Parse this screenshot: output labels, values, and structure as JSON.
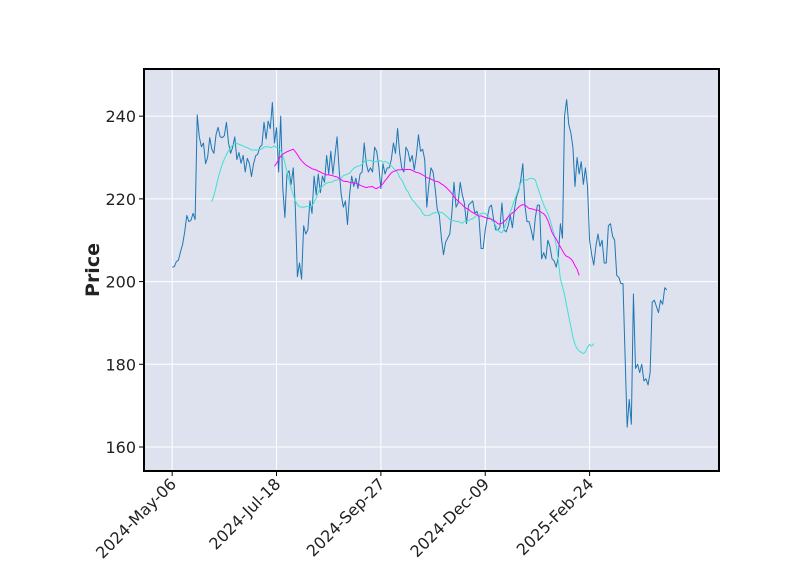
{
  "chart_data": {
    "type": "line",
    "title": "",
    "ylabel": "Price",
    "xlabel": "",
    "ylim": [
      154.2,
      251.4
    ],
    "ytick_labels": [
      "160",
      "180",
      "200",
      "220",
      "240"
    ],
    "yticks": [
      160,
      180,
      200,
      220,
      240
    ],
    "xtick_labels": [
      "2024-May-06",
      "2024-Jul-18",
      "2024-Sep-27",
      "2024-Dec-09",
      "2025-Feb-24"
    ],
    "xtick_index": [
      0,
      50,
      100,
      150,
      200
    ],
    "x_range_index": [
      -13.5,
      262
    ],
    "background": "#dde2ee",
    "grid": true,
    "series": [
      {
        "color": "#1f77b4",
        "values": [
          203.5,
          203.6,
          204.8,
          205.2,
          207.2,
          209.0,
          212.0,
          216.0,
          214.5,
          214.8,
          216.5,
          215.0,
          240.3,
          235.0,
          232.6,
          233.5,
          228.5,
          230.1,
          234.8,
          232.0,
          231.0,
          235.5,
          237.3,
          235.0,
          234.8,
          235.3,
          238.5,
          233.5,
          231.0,
          232.5,
          235.0,
          229.5,
          231.2,
          228.6,
          230.5,
          226.5,
          229.8,
          228.5,
          225.4,
          228.5,
          230.4,
          230.8,
          232.5,
          233.0,
          238.5,
          234.5,
          238.8,
          237.0,
          243.3,
          233.5,
          237.2,
          226.5,
          240.0,
          222.5,
          215.5,
          226.0,
          226.8,
          223.5,
          227.5,
          218.0,
          201.2,
          204.5,
          200.6,
          213.5,
          211.5,
          212.5,
          219.5,
          216.5,
          225.5,
          221.0,
          226.0,
          221.5,
          225.5,
          224.0,
          230.5,
          226.0,
          231.5,
          226.0,
          230.5,
          235.0,
          227.0,
          221.0,
          218.0,
          219.5,
          213.8,
          221.0,
          225.5,
          223.0,
          225.0,
          222.5,
          226.0,
          226.5,
          233.5,
          228.5,
          226.5,
          227.5,
          226.5,
          232.5,
          231.5,
          227.8,
          222.5,
          228.5,
          226.0,
          227.5,
          227.5,
          229.5,
          233.5,
          231.0,
          237.0,
          231.0,
          227.5,
          226.5,
          232.5,
          231.5,
          229.0,
          230.5,
          227.0,
          230.5,
          235.5,
          231.5,
          232.0,
          229.5,
          218.0,
          223.5,
          227.5,
          226.5,
          222.5,
          217.5,
          216.0,
          210.5,
          206.5,
          209.5,
          210.5,
          211.5,
          216.5,
          224.0,
          218.0,
          219.0,
          224.0,
          221.0,
          219.0,
          214.0,
          218.5,
          219.0,
          219.5,
          216.5,
          217.0,
          215.5,
          208.0,
          208.0,
          212.5,
          215.5,
          218.0,
          218.5,
          215.0,
          212.5,
          212.5,
          213.0,
          219.0,
          212.5,
          212.0,
          213.5,
          216.0,
          213.0,
          217.5,
          220.5,
          222.0,
          224.5,
          228.5,
          218.5,
          214.5,
          214.5,
          212.5,
          210.0,
          215.5,
          218.5,
          218.5,
          205.5,
          207.0,
          205.5,
          210.0,
          208.5,
          205.5,
          205.0,
          203.5,
          206.0,
          214.0,
          210.5,
          240.0,
          244.0,
          238.0,
          236.0,
          232.5,
          223.0,
          230.0,
          226.0,
          229.0,
          223.5,
          227.5,
          223.0,
          210.0,
          206.5,
          204.0,
          208.5,
          211.5,
          208.5,
          210.0,
          204.5,
          204.5,
          213.5,
          214.0,
          211.0,
          210.0,
          201.5,
          201.0,
          199.5,
          199.5,
          182.0,
          164.8,
          171.5,
          165.5,
          197.0,
          179.0,
          180.0,
          178.0,
          180.0,
          176.0,
          176.5,
          175.0,
          178.0,
          195.0,
          195.5,
          194.0,
          192.5,
          195.5,
          194.5,
          198.5,
          198.0
        ]
      },
      {
        "color": "#40e0d0",
        "start_index": 19,
        "values": [
          219.3,
          220.8,
          222.8,
          225.0,
          226.8,
          228.4,
          229.6,
          230.7,
          231.6,
          232.4,
          233.0,
          233.3,
          233.4,
          233.2,
          233.0,
          232.8,
          232.5,
          232.4,
          232.1,
          231.8,
          231.8,
          231.8,
          231.8,
          231.9,
          232.1,
          232.5,
          232.6,
          232.6,
          232.4,
          232.5,
          232.8,
          232.4,
          232.2,
          231.7,
          230.4,
          228.7,
          226.6,
          224.5,
          222.6,
          221.0,
          219.5,
          218.6,
          218.1,
          218.0,
          218.0,
          218.1,
          218.2,
          218.2,
          218.3,
          219.2,
          220.2,
          221.6,
          222.6,
          223.0,
          223.5,
          223.8,
          224.0,
          224.0,
          224.2,
          224.5,
          224.5,
          224.9,
          225.0,
          225.6,
          225.8,
          226.0,
          226.2,
          226.8,
          227.4,
          227.7,
          227.9,
          228.0,
          228.4,
          229.0,
          229.4,
          229.3,
          229.3,
          229.1,
          228.9,
          229.1,
          229.2,
          229.2,
          228.9,
          229.0,
          228.9,
          228.4,
          228.0,
          227.4,
          226.9,
          226.4,
          225.2,
          224.6,
          223.5,
          222.4,
          221.7,
          220.6,
          219.8,
          219.3,
          218.6,
          218.0,
          217.5,
          216.5,
          216.0,
          215.9,
          216.0,
          216.2,
          216.6,
          216.6,
          216.8,
          216.8,
          216.7,
          216.5,
          216.0,
          215.6,
          215.0,
          214.7,
          214.8,
          214.5,
          214.6,
          214.3,
          214.1,
          214.6,
          214.6,
          214.7,
          215.1,
          215.2,
          215.6,
          216.1,
          216.2,
          216.4,
          216.6,
          216.5,
          215.8,
          215.5,
          214.9,
          214.4,
          213.6,
          212.4,
          212.0,
          211.8,
          212.7,
          214.2,
          215.6,
          216.8,
          218.2,
          219.7,
          221.0,
          222.5,
          223.8,
          224.8,
          224.7,
          224.5,
          224.9,
          225.0,
          224.9,
          224.6,
          222.9,
          221.5,
          219.9,
          218.6,
          217.5,
          216.4,
          215.0,
          213.2,
          211.3,
          208.8,
          205.1,
          200.7,
          198.8,
          196.8,
          194.2,
          191.6,
          189.1,
          186.6,
          184.8,
          183.8,
          183.2,
          182.9,
          182.6,
          183.0,
          184.2,
          184.8,
          184.4,
          185.0
        ]
      },
      {
        "color": "#ff00ff",
        "start_index": 49,
        "values": [
          227.9,
          228.6,
          229.5,
          230.3,
          230.8,
          231.1,
          231.4,
          231.6,
          231.8,
          232.0,
          231.4,
          230.7,
          229.9,
          229.2,
          228.7,
          228.2,
          227.9,
          227.6,
          227.3,
          227.1,
          227.0,
          226.7,
          226.5,
          226.2,
          226.0,
          225.8,
          225.8,
          225.7,
          225.6,
          225.4,
          225.3,
          225.0,
          224.6,
          224.3,
          224.2,
          224.2,
          224.0,
          223.9,
          223.9,
          223.8,
          223.6,
          223.3,
          223.1,
          222.9,
          222.7,
          222.9,
          222.9,
          223.0,
          222.6,
          222.5,
          222.8,
          223.1,
          223.7,
          224.4,
          225.0,
          225.7,
          226.3,
          226.6,
          226.8,
          227.0,
          227.0,
          227.1,
          227.0,
          227.1,
          227.1,
          227.1,
          226.9,
          226.6,
          226.4,
          226.3,
          226.1,
          225.8,
          225.5,
          225.1,
          225.0,
          224.8,
          224.5,
          224.3,
          224.2,
          224.0,
          223.6,
          223.3,
          222.9,
          222.4,
          221.9,
          221.3,
          220.5,
          219.9,
          219.5,
          219.0,
          218.6,
          218.0,
          217.7,
          217.5,
          217.0,
          216.7,
          216.4,
          216.1,
          215.8,
          215.9,
          215.7,
          215.5,
          215.3,
          215.2,
          215.1,
          214.8,
          214.5,
          214.0,
          213.9,
          214.1,
          214.5,
          215.0,
          215.7,
          216.2,
          216.6,
          216.9,
          217.5,
          218.0,
          218.4,
          218.6,
          218.5,
          218.1,
          217.7,
          217.6,
          217.5,
          217.3,
          217.3,
          217.1,
          216.7,
          216.4,
          215.8,
          214.8,
          213.4,
          211.9,
          211.0,
          210.3,
          209.3,
          208.4,
          207.5,
          206.6,
          206.1,
          205.9,
          205.5,
          204.9,
          203.8,
          203.0,
          201.5
        ]
      }
    ]
  }
}
